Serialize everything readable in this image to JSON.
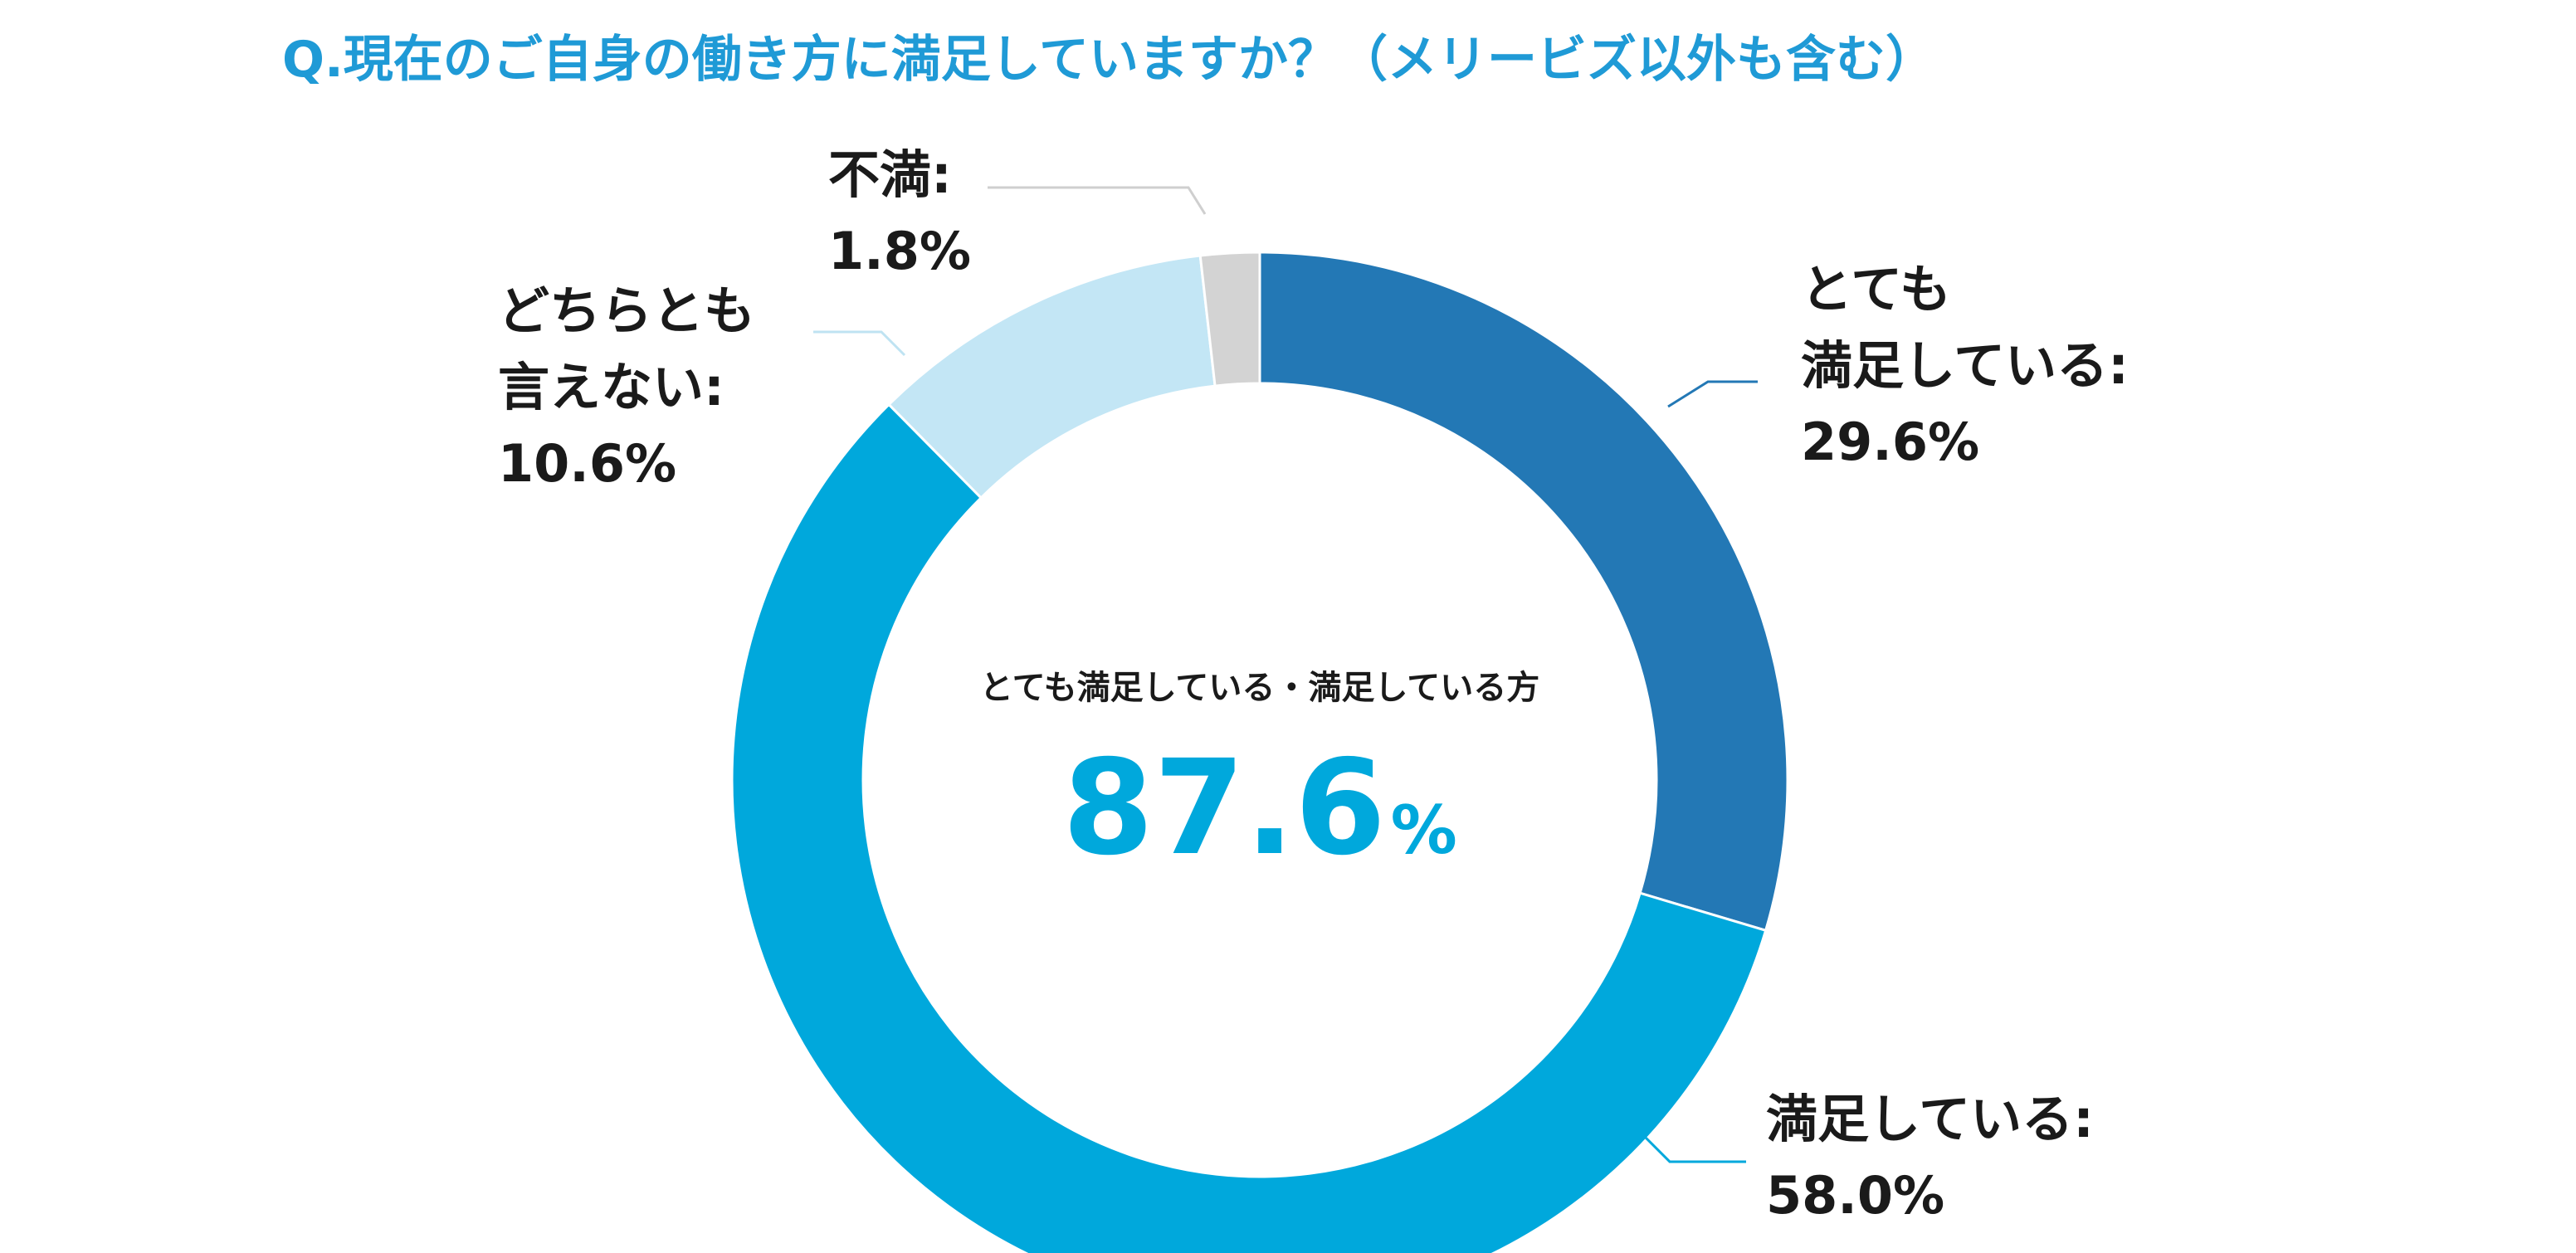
{
  "colors": {
    "title": "#1f9ad6",
    "very_satisfied": "#2378b5",
    "satisfied": "#00a8dc",
    "neutral": "#c3e6f5",
    "dissatisfied": "#d3d3d3",
    "leader_very": "#2378b5",
    "leader_sat": "#00a8dc",
    "leader_neutral": "#bfe3f2",
    "leader_dis": "#cfcfcf",
    "center_value": "#00a8dc",
    "text": "#1a1a1a"
  },
  "chart_data": {
    "type": "pie",
    "donut": true,
    "title": "Q.現在のご自身の働き方に満足していますか？（メリービズ以外も含む）",
    "slices": [
      {
        "key": "very_satisfied",
        "label_lines": [
          "とても",
          "満足している:"
        ],
        "value": 29.6,
        "value_text": "29.6%"
      },
      {
        "key": "satisfied",
        "label_lines": [
          "満足している:"
        ],
        "value": 58.0,
        "value_text": "58.0%"
      },
      {
        "key": "neutral",
        "label_lines": [
          "どちらとも",
          "言えない:"
        ],
        "value": 10.6,
        "value_text": "10.6%"
      },
      {
        "key": "dissatisfied",
        "label_lines": [
          "不満:"
        ],
        "value": 1.8,
        "value_text": "1.8%"
      }
    ],
    "center": {
      "label": "とても満足している・満足している方",
      "value_number": "87.6",
      "value_unit": "%"
    },
    "legend": "none"
  }
}
